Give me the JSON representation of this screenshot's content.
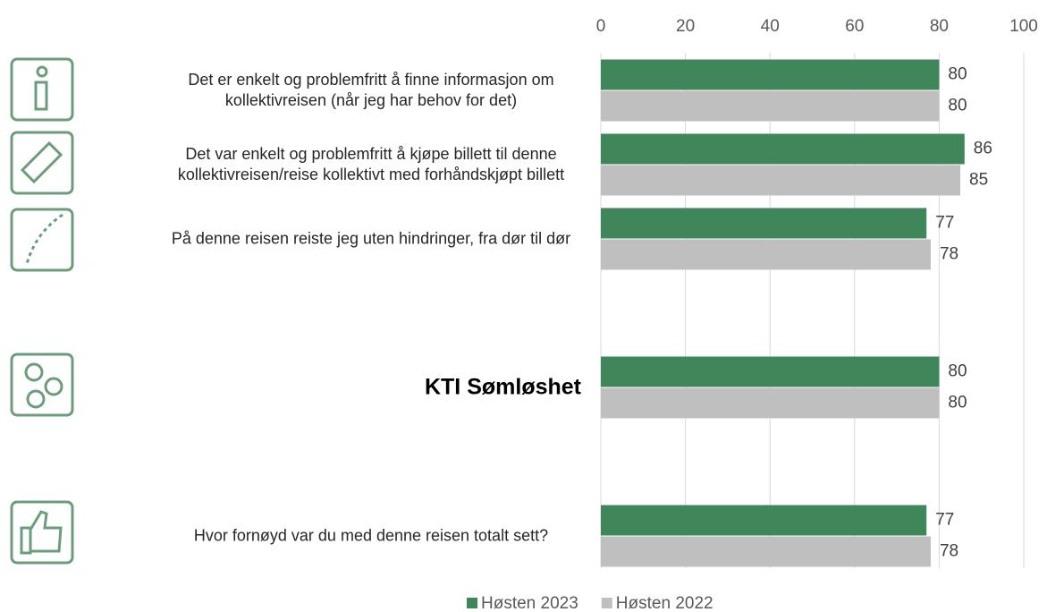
{
  "chart_data": {
    "type": "hbar",
    "categories": [
      "Det er enkelt og problemfritt å finne informasjon om kollektivreisen (når jeg har behov for det)",
      "Det var enkelt og problemfritt å kjøpe billett til denne kollektivreisen/reise kollektivt med forhåndskjøpt billett",
      "På denne reisen reiste jeg uten hindringer, fra dør til dør",
      null,
      "KTI Sømløshet",
      null,
      "Hvor fornøyd var du med denne reisen totalt sett?"
    ],
    "series": [
      {
        "name": "Høsten 2023",
        "color": "#3f875a",
        "values": [
          80,
          86,
          77,
          null,
          80,
          null,
          77
        ]
      },
      {
        "name": "Høsten 2022",
        "color": "#bfbfbf",
        "values": [
          80,
          85,
          78,
          null,
          80,
          null,
          78
        ]
      }
    ],
    "xlim": [
      0,
      100
    ],
    "xticks": [
      0,
      20,
      40,
      60,
      80,
      100
    ],
    "grid": true,
    "legend": "bottom"
  }
}
